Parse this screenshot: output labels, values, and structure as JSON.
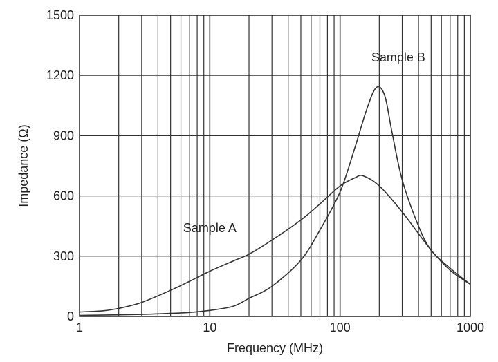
{
  "chart_data": {
    "type": "line",
    "xlabel": "Frequency (MHz)",
    "ylabel": "Impedance (Ω)",
    "xscale": "log",
    "xlim": [
      1,
      1000
    ],
    "ylim": [
      0,
      1500
    ],
    "x_tick_labels": [
      "1",
      "10",
      "100",
      "1000"
    ],
    "y_tick_labels": [
      "0",
      "300",
      "600",
      "900",
      "1200",
      "1500"
    ],
    "x_ticks": [
      1,
      10,
      100,
      1000
    ],
    "y_ticks": [
      0,
      300,
      600,
      900,
      1200,
      1500
    ],
    "grid": true,
    "series": [
      {
        "name": "Sample A",
        "color": "#333333",
        "x": [
          1,
          1.5,
          2,
          3,
          5,
          7,
          10,
          15,
          20,
          30,
          50,
          70,
          100,
          130,
          150,
          200,
          300,
          500,
          700,
          1000
        ],
        "y": [
          22,
          28,
          40,
          70,
          130,
          175,
          225,
          275,
          310,
          380,
          480,
          560,
          650,
          690,
          700,
          650,
          520,
          330,
          230,
          160
        ]
      },
      {
        "name": "Sample B",
        "color": "#333333",
        "x": [
          1,
          2,
          3,
          5,
          7,
          10,
          15,
          20,
          30,
          50,
          70,
          100,
          130,
          160,
          190,
          220,
          250,
          300,
          400,
          500,
          700,
          1000
        ],
        "y": [
          5,
          8,
          10,
          15,
          20,
          30,
          50,
          90,
          150,
          280,
          430,
          620,
          840,
          1030,
          1140,
          1100,
          920,
          680,
          450,
          330,
          240,
          160
        ]
      }
    ],
    "annotations": [
      {
        "text": "Sample B",
        "x": 280,
        "y": 1270
      },
      {
        "text": "Sample A",
        "x": 10,
        "y": 420
      }
    ]
  }
}
